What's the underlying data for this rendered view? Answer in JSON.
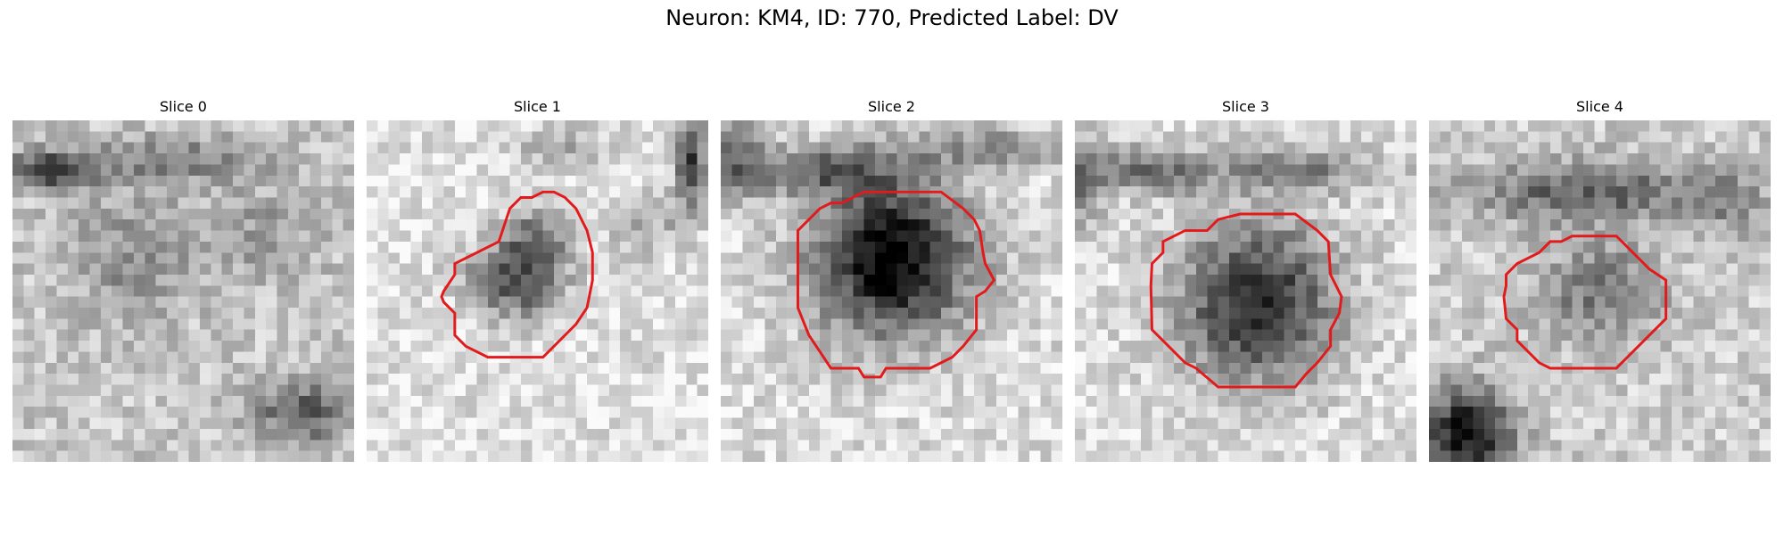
{
  "figure": {
    "title": "Neuron: KM4, ID: 770, Predicted Label: DV"
  },
  "slices": [
    {
      "title": "Slice 0",
      "has_contour": false
    },
    {
      "title": "Slice 1",
      "has_contour": true
    },
    {
      "title": "Slice 2",
      "has_contour": true
    },
    {
      "title": "Slice 3",
      "has_contour": true
    },
    {
      "title": "Slice 4",
      "has_contour": true
    }
  ],
  "colors": {
    "contour": "#e31a1c",
    "background": "#ffffff"
  }
}
